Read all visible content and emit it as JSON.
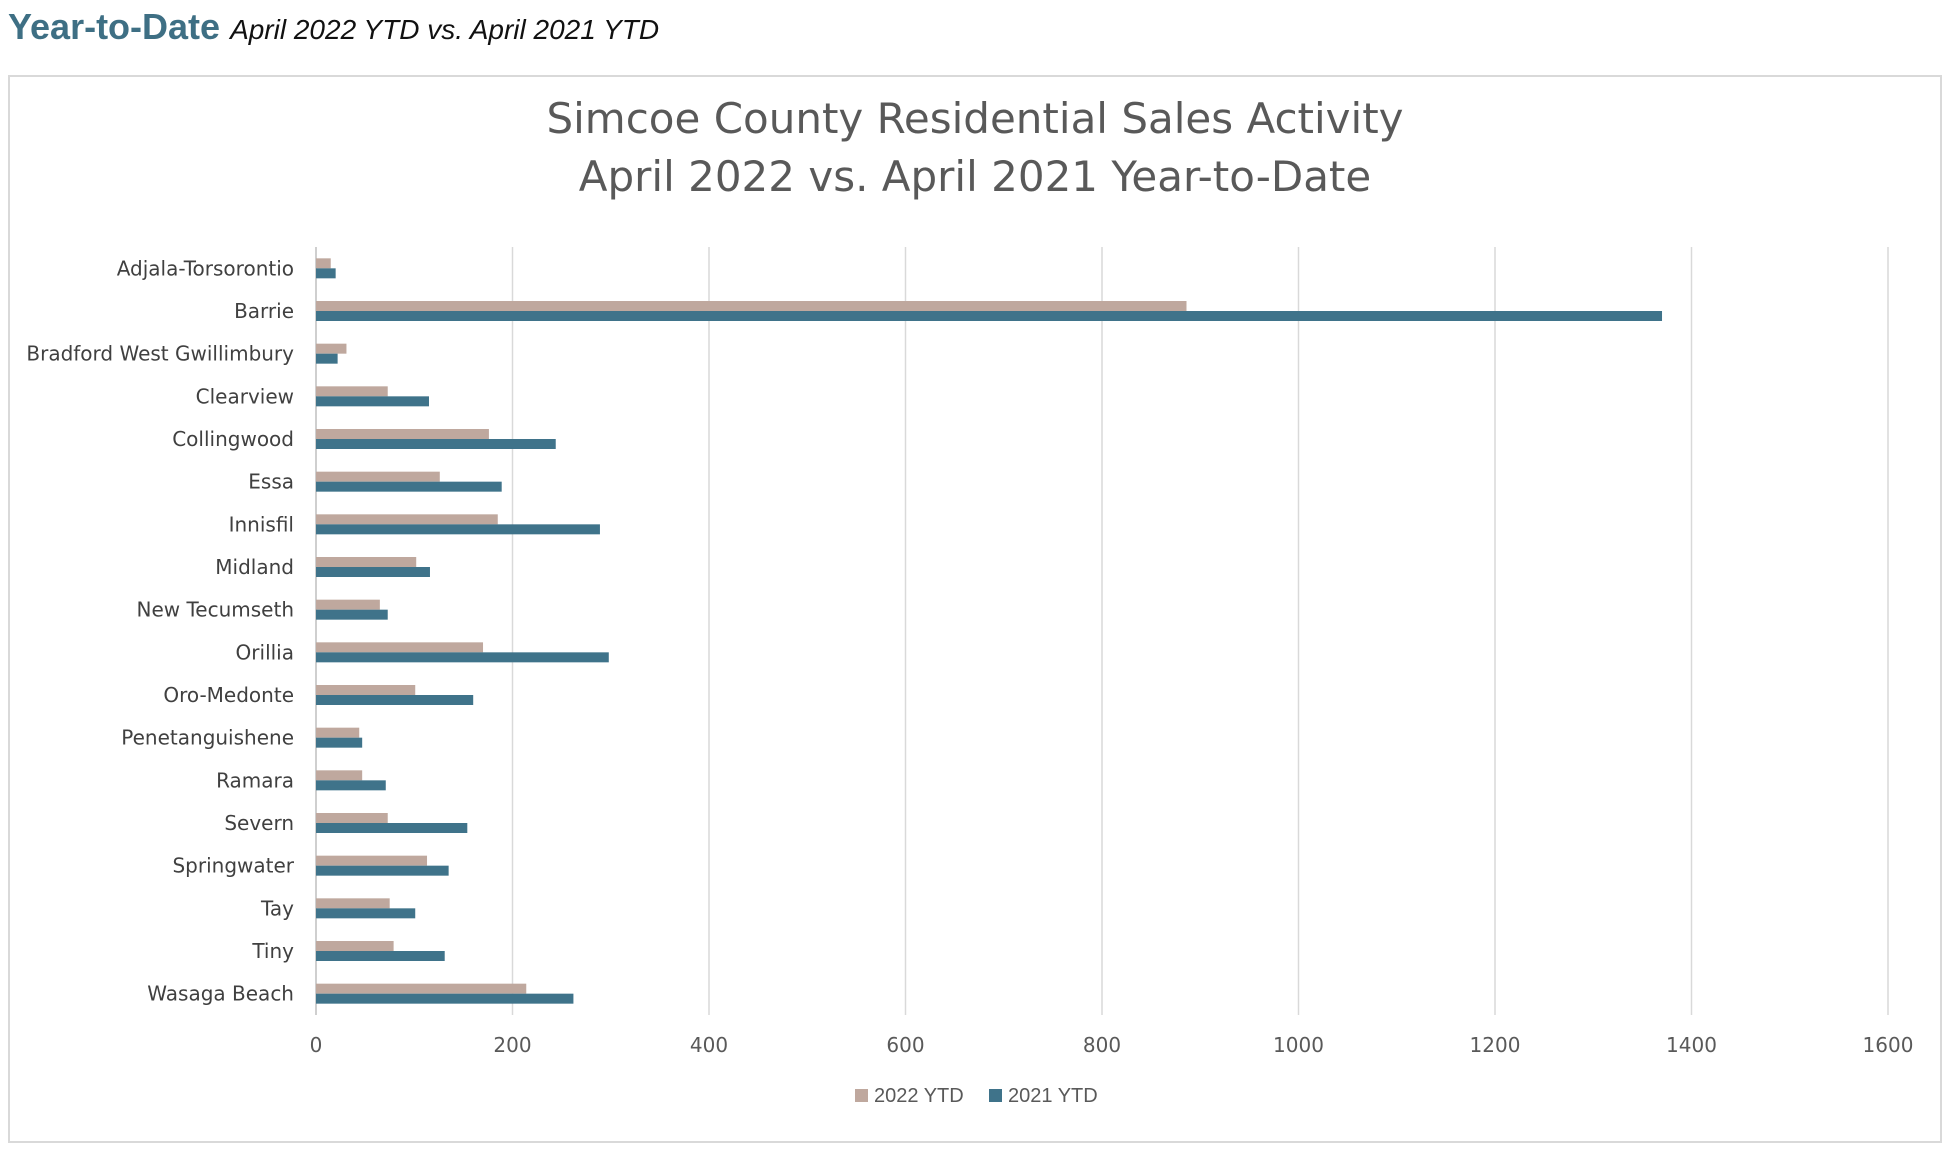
{
  "header": {
    "title": "Year-to-Date",
    "subtitle": "April 2022 YTD vs. April 2021 YTD"
  },
  "chart_data": {
    "type": "bar",
    "orientation": "horizontal",
    "title": [
      "Simcoe County Residential Sales Activity",
      "April 2022 vs. April 2021 Year-to-Date"
    ],
    "xlabel": "",
    "ylabel": "",
    "xlim": [
      0,
      1600
    ],
    "ticks": [
      0,
      200,
      400,
      600,
      800,
      1000,
      1200,
      1400,
      1600
    ],
    "grid": "vertical",
    "legend_position": "bottom",
    "categories": [
      "Adjala-Torsorontio",
      "Barrie",
      "Bradford West Gwillimbury",
      "Clearview",
      "Collingwood",
      "Essa",
      "Innisfil",
      "Midland",
      "New Tecumseth",
      "Orillia",
      "Oro-Medonte",
      "Penetanguishene",
      "Ramara",
      "Severn",
      "Springwater",
      "Tay",
      "Tiny",
      "Wasaga Beach"
    ],
    "series": [
      {
        "name": "2022 YTD",
        "color": "#bfa89e",
        "values": [
          15,
          886,
          31,
          73,
          176,
          126,
          185,
          102,
          65,
          170,
          101,
          44,
          47,
          73,
          113,
          75,
          79,
          214
        ]
      },
      {
        "name": "2021 YTD",
        "color": "#3f738a",
        "values": [
          20,
          1370,
          22,
          115,
          244,
          189,
          289,
          116,
          73,
          298,
          160,
          47,
          71,
          154,
          135,
          101,
          131,
          262
        ]
      }
    ]
  }
}
